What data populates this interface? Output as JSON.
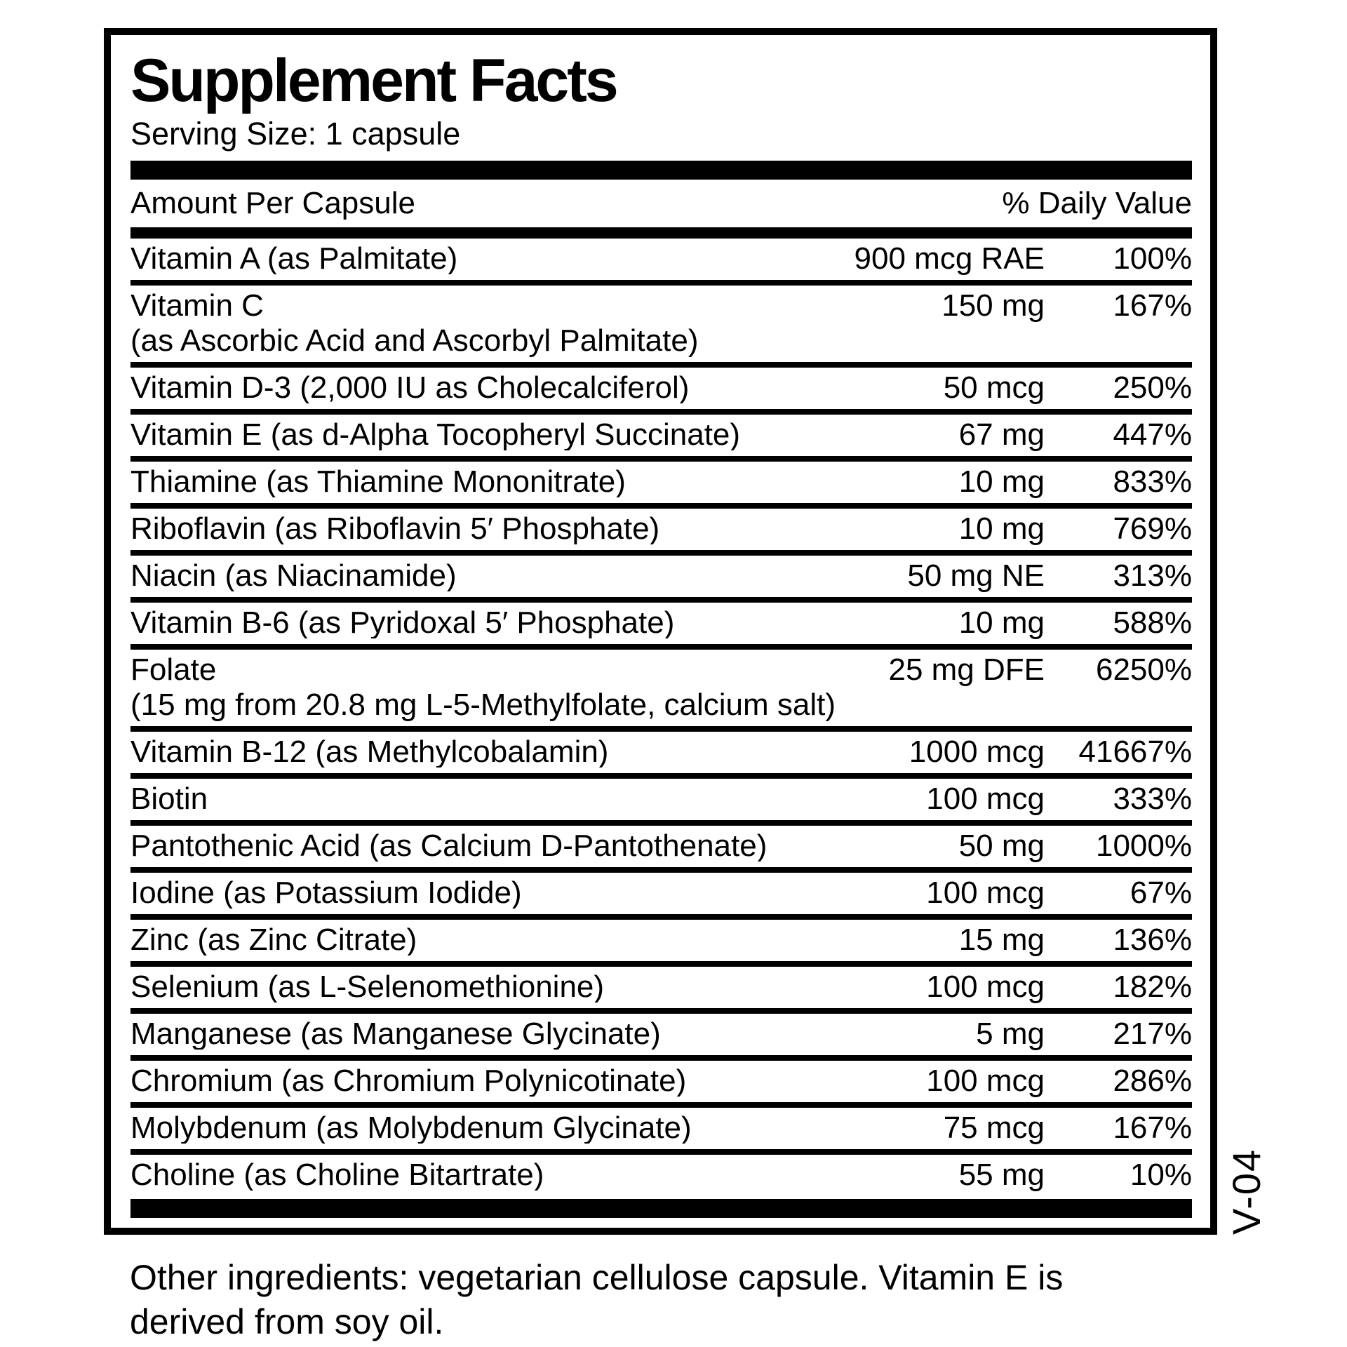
{
  "panel": {
    "title": "Supplement Facts",
    "serving_size": "Serving Size: 1 capsule",
    "columns": {
      "amount_header": "Amount Per Capsule",
      "dv_header": "% Daily Value"
    },
    "rows": [
      {
        "name": "Vitamin A (as Palmitate)",
        "name2": "",
        "amount": "900 mcg RAE",
        "dv": "100%"
      },
      {
        "name": "Vitamin C",
        "name2": "(as Ascorbic Acid and Ascorbyl Palmitate)",
        "amount": "150 mg",
        "dv": "167%"
      },
      {
        "name": "Vitamin D-3 (2,000 IU as Cholecalciferol)",
        "name2": "",
        "amount": "50 mcg",
        "dv": "250%"
      },
      {
        "name": "Vitamin E (as d-Alpha Tocopheryl Succinate)",
        "name2": "",
        "amount": "67 mg",
        "dv": "447%"
      },
      {
        "name": "Thiamine (as Thiamine Mononitrate)",
        "name2": "",
        "amount": "10 mg",
        "dv": "833%"
      },
      {
        "name": "Riboflavin (as Riboflavin 5′ Phosphate)",
        "name2": "",
        "amount": "10 mg",
        "dv": "769%"
      },
      {
        "name": "Niacin (as Niacinamide)",
        "name2": "",
        "amount": "50 mg NE",
        "dv": "313%"
      },
      {
        "name": "Vitamin B-6 (as Pyridoxal 5′ Phosphate)",
        "name2": "",
        "amount": "10 mg",
        "dv": "588%"
      },
      {
        "name": "Folate",
        "name2": "(15 mg from 20.8 mg L-5-Methylfolate, calcium salt)",
        "amount": "25 mg DFE",
        "dv": "6250%"
      },
      {
        "name": "Vitamin B-12 (as Methylcobalamin)",
        "name2": "",
        "amount": "1000 mcg",
        "dv": "41667%"
      },
      {
        "name": "Biotin",
        "name2": "",
        "amount": "100 mcg",
        "dv": "333%"
      },
      {
        "name": "Pantothenic Acid (as Calcium D-Pantothenate)",
        "name2": "",
        "amount": "50 mg",
        "dv": "1000%"
      },
      {
        "name": "Iodine (as Potassium Iodide)",
        "name2": "",
        "amount": "100 mcg",
        "dv": "67%"
      },
      {
        "name": "Zinc (as Zinc Citrate)",
        "name2": "",
        "amount": "15 mg",
        "dv": "136%"
      },
      {
        "name": "Selenium (as L-Selenomethionine)",
        "name2": "",
        "amount": "100 mcg",
        "dv": "182%"
      },
      {
        "name": "Manganese (as Manganese Glycinate)",
        "name2": "",
        "amount": "5 mg",
        "dv": "217%"
      },
      {
        "name": "Chromium (as Chromium Polynicotinate)",
        "name2": "",
        "amount": "100 mcg",
        "dv": "286%"
      },
      {
        "name": "Molybdenum (as Molybdenum Glycinate)",
        "name2": "",
        "amount": "75 mcg",
        "dv": "167%"
      },
      {
        "name": "Choline (as Choline Bitartrate)",
        "name2": "",
        "amount": "55 mg",
        "dv": "10%"
      }
    ],
    "side_code": "V-04",
    "other_ingredients": "Other ingredients: vegetarian cellulose capsule. Vitamin E is derived from soy oil.",
    "colors": {
      "ink": "#000000",
      "background": "#ffffff"
    }
  }
}
